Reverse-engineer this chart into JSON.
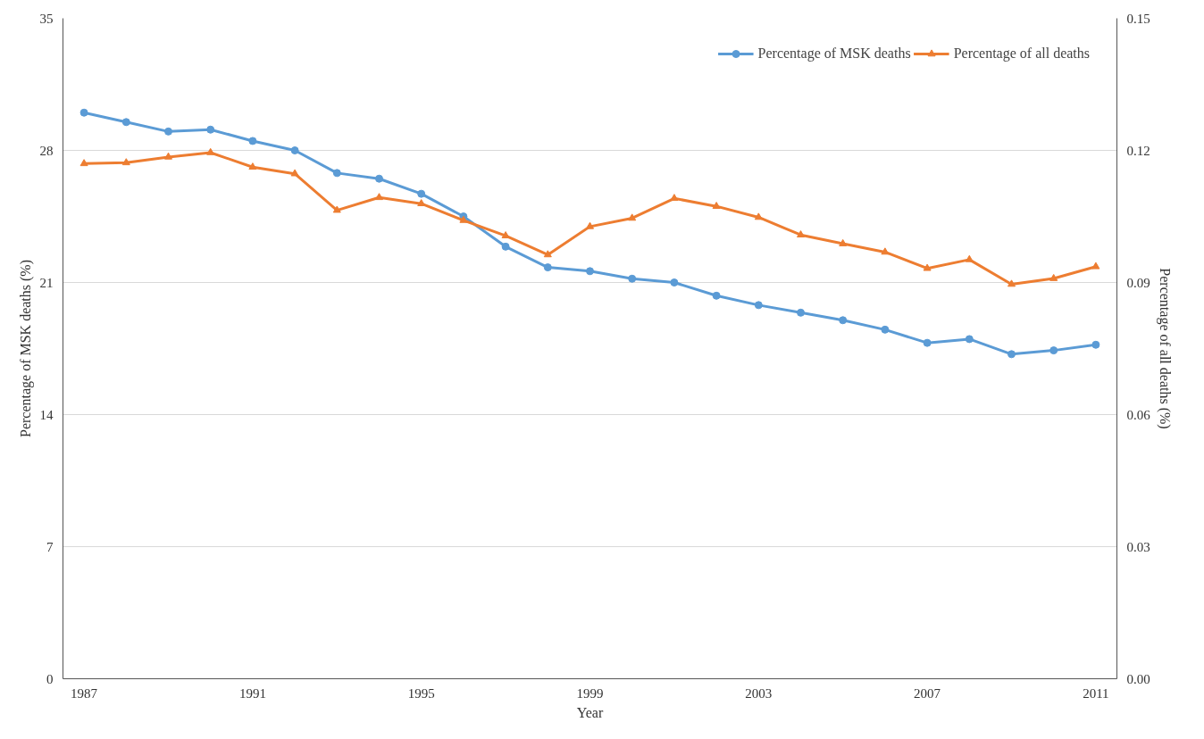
{
  "chart_data": {
    "type": "line",
    "xlabel": "Year",
    "ylabel": "Percentage of MSK deaths (%)",
    "y2label": "Percentage of all deaths (%)",
    "x": [
      1987,
      1988,
      1989,
      1990,
      1991,
      1992,
      1993,
      1994,
      1995,
      1996,
      1997,
      1998,
      1999,
      2000,
      2001,
      2002,
      2003,
      2004,
      2005,
      2006,
      2007,
      2008,
      2009,
      2010,
      2011
    ],
    "series": [
      {
        "name": "Percentage of MSK deaths",
        "color": "#5b9bd5",
        "marker": "circle",
        "values": [
          30.0,
          29.5,
          29.0,
          29.1,
          28.5,
          28.0,
          26.8,
          26.5,
          25.7,
          24.5,
          22.9,
          21.8,
          21.6,
          21.2,
          21.0,
          20.3,
          19.8,
          19.4,
          19.0,
          18.5,
          17.8,
          18.0,
          17.2,
          17.4,
          17.7
        ]
      },
      {
        "name": "Percentage of all deaths",
        "color": "#ed7d31",
        "marker": "triangle",
        "axis": "y2",
        "values": [
          0.117,
          0.1172,
          0.1185,
          0.1195,
          0.1162,
          0.1147,
          0.1064,
          0.1093,
          0.1079,
          0.1041,
          0.1006,
          0.0963,
          0.1027,
          0.1046,
          0.1091,
          0.1073,
          0.1048,
          0.1008,
          0.0988,
          0.0969,
          0.0932,
          0.0952,
          0.0896,
          0.0909,
          0.0936
        ]
      }
    ],
    "xlim": [
      1986.5,
      2011.5
    ],
    "xticks": [
      1987,
      1991,
      1995,
      1999,
      2003,
      2007,
      2011
    ],
    "ylim": [
      0,
      35
    ],
    "yticks": [
      0,
      7,
      14,
      21,
      28,
      35
    ],
    "y2lim": [
      0,
      0.15
    ],
    "y2ticks": [
      {
        "value": 0,
        "label": "0.00"
      },
      {
        "value": 0.03,
        "label": "0.03"
      },
      {
        "value": 0.06,
        "label": "0.06"
      },
      {
        "value": 0.09,
        "label": "0.09"
      },
      {
        "value": 0.12,
        "label": "0.12"
      },
      {
        "value": 0.15,
        "label": "0.15"
      }
    ],
    "grid": "y",
    "legend": "top right",
    "line_style": "solid"
  }
}
